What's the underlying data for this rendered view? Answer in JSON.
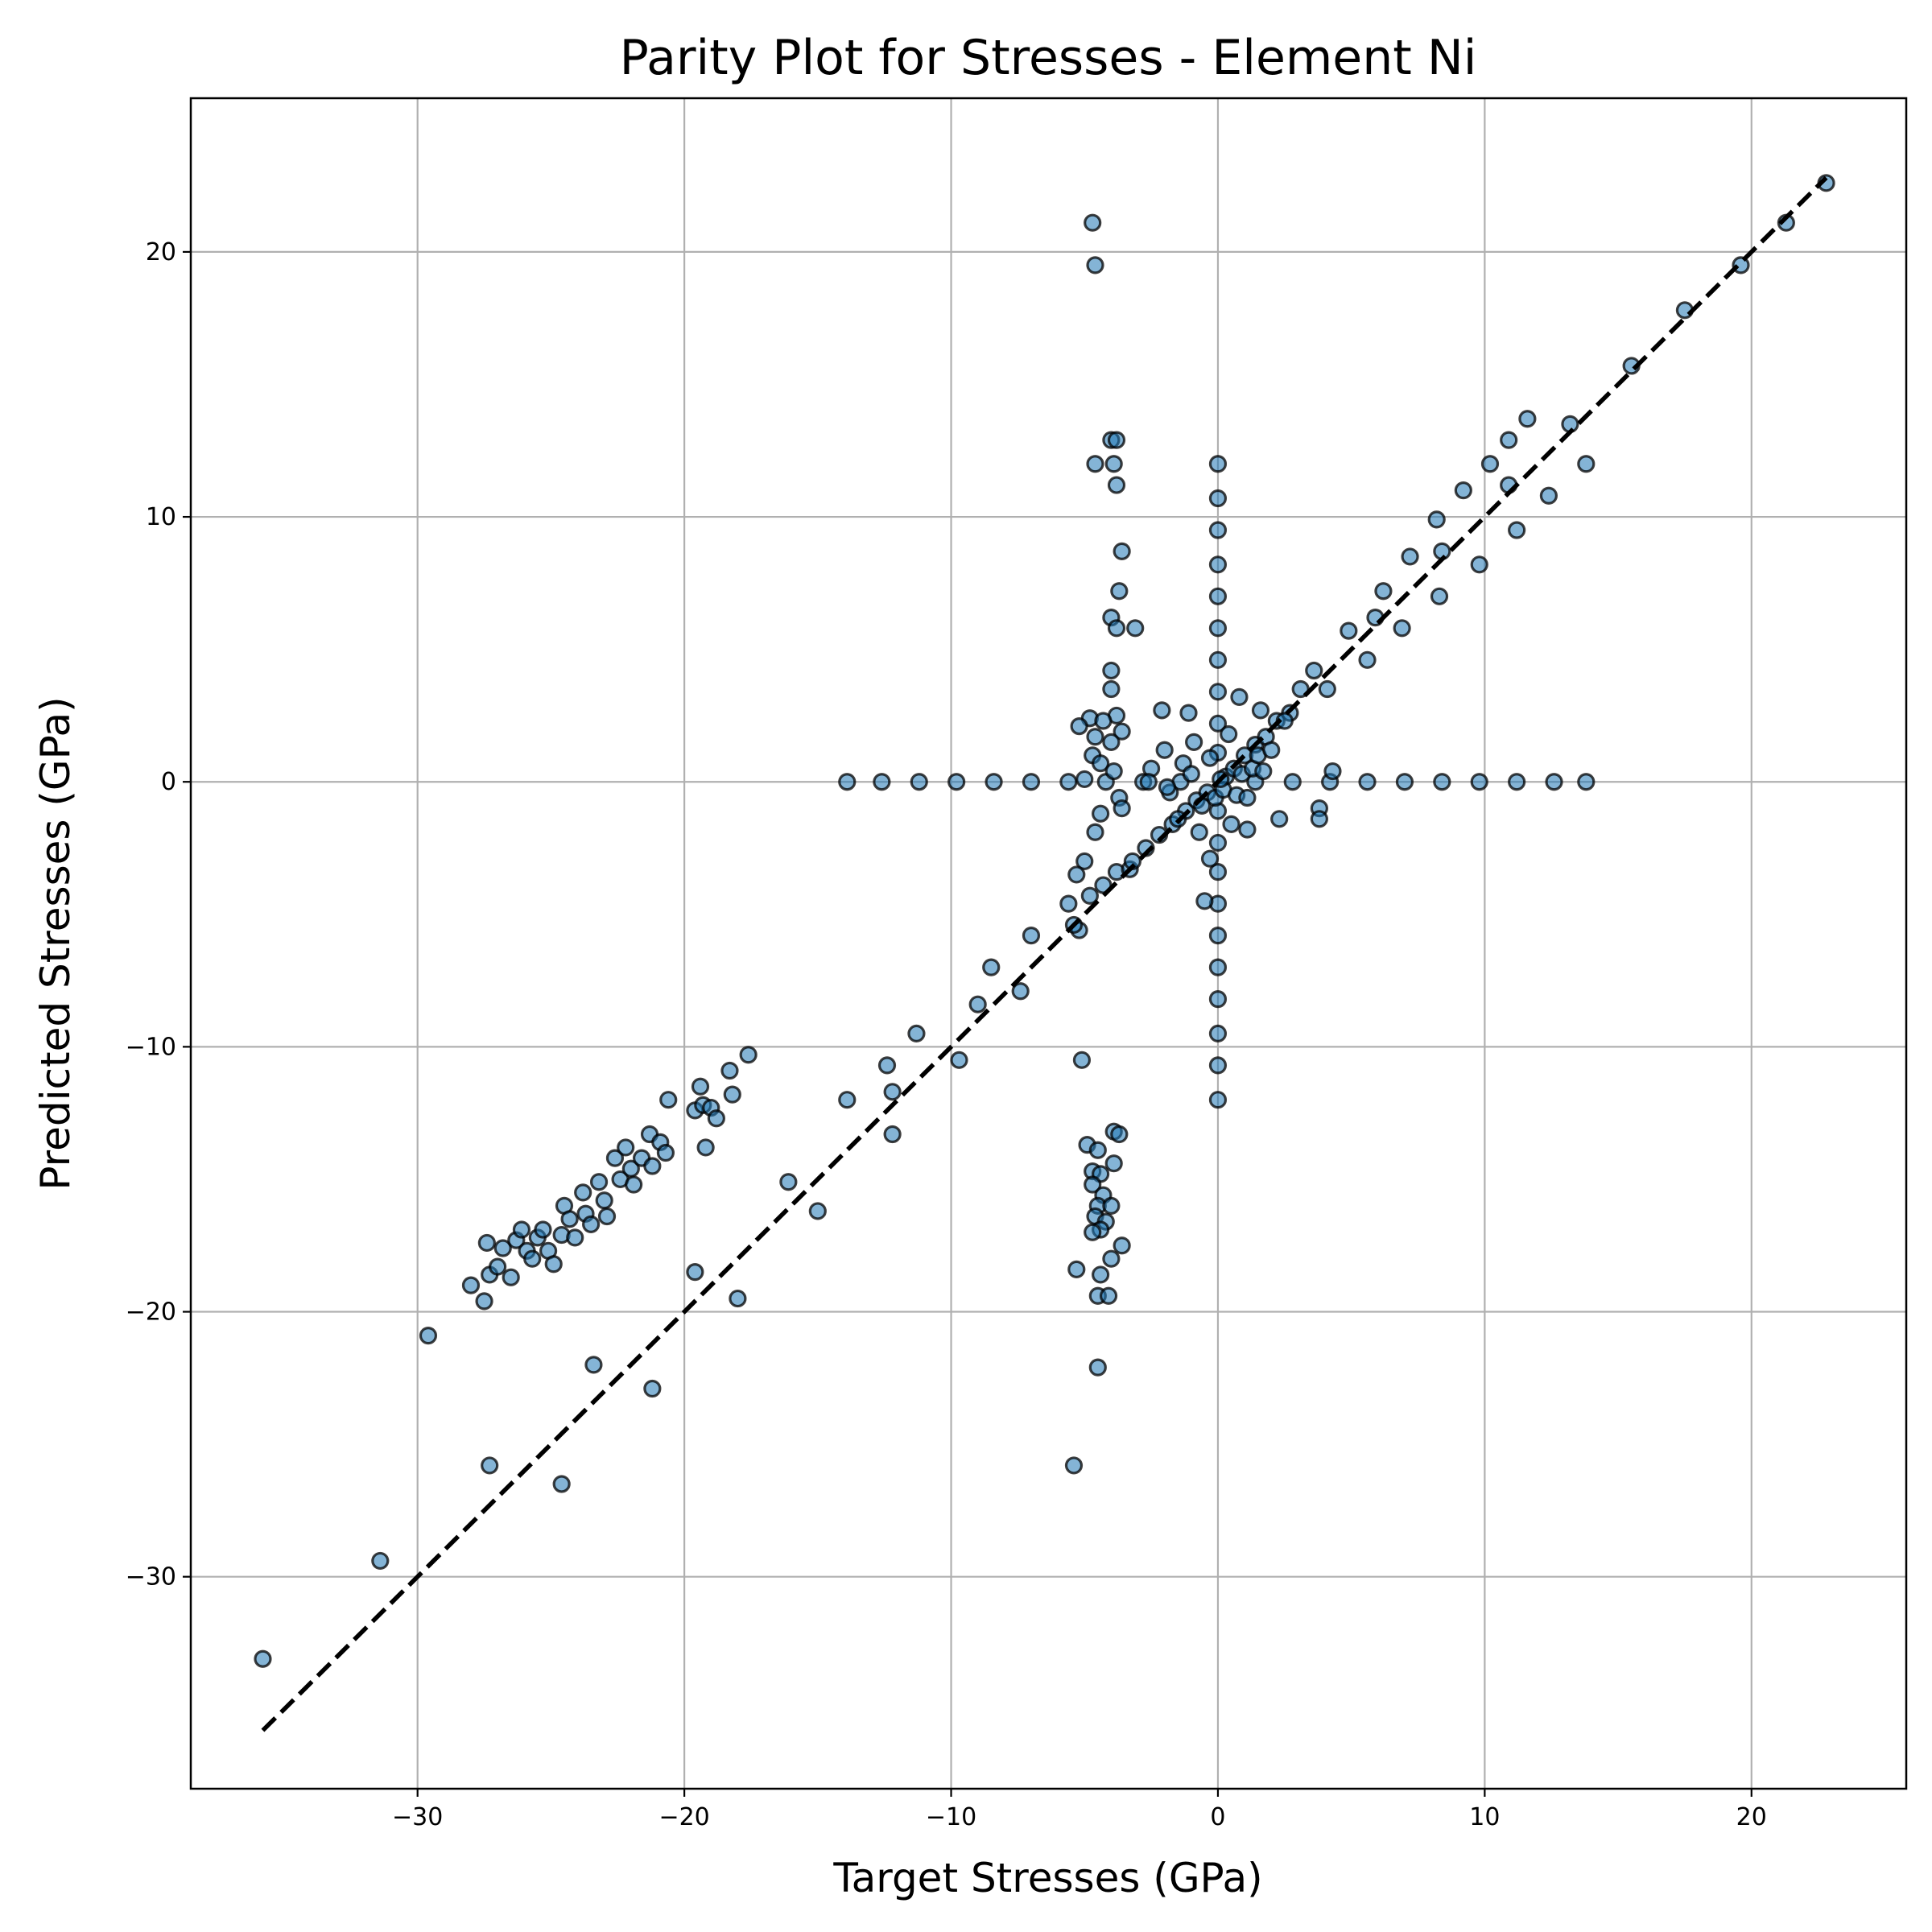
{
  "chart_data": {
    "type": "scatter",
    "title": "Parity Plot for Stresses - Element Ni",
    "xlabel": "Target Stresses (GPa)",
    "ylabel": "Predicted Stresses (GPa)",
    "xlim": [
      -38.5,
      25.8
    ],
    "ylim": [
      -38.0,
      25.8
    ],
    "xticks": [
      -30,
      -20,
      -10,
      0,
      10,
      20
    ],
    "yticks": [
      -30,
      -20,
      -10,
      0,
      10,
      20
    ],
    "xtick_labels": [
      "−30",
      "−20",
      "−10",
      "0",
      "10",
      "20"
    ],
    "ytick_labels": [
      "−30",
      "−20",
      "−10",
      "0",
      "10",
      "20"
    ],
    "grid": true,
    "marker_color": "#1f77b4",
    "parity_line": {
      "x": [
        -35.8,
        22.8
      ],
      "y": [
        -35.8,
        22.8
      ],
      "style": "dashed",
      "color": "#000000"
    },
    "series": [
      {
        "points": [
          [
            -35.8,
            -33.1
          ],
          [
            -31.4,
            -29.4
          ],
          [
            -27.3,
            -25.8
          ],
          [
            -24.6,
            -26.5
          ],
          [
            -23.4,
            -22.0
          ],
          [
            -21.2,
            -22.9
          ],
          [
            -19.6,
            -18.5
          ],
          [
            -18.0,
            -19.5
          ],
          [
            -16.1,
            -15.1
          ],
          [
            -15.0,
            -16.2
          ],
          [
            -13.9,
            -12.0
          ],
          [
            -12.4,
            -10.7
          ],
          [
            -12.2,
            -11.7
          ],
          [
            -12.2,
            -13.3
          ],
          [
            -11.3,
            -9.5
          ],
          [
            -9.7,
            -10.5
          ],
          [
            -9.0,
            -8.4
          ],
          [
            -8.5,
            -7.0
          ],
          [
            -7.4,
            -7.9
          ],
          [
            -7.0,
            -5.8
          ],
          [
            -5.6,
            -4.6
          ],
          [
            -5.2,
            -5.6
          ],
          [
            -4.8,
            -4.3
          ],
          [
            -4.3,
            -3.9
          ],
          [
            -3.8,
            -3.4
          ],
          [
            -3.3,
            -3.3
          ],
          [
            -2.7,
            -2.5
          ],
          [
            -2.2,
            -2.0
          ],
          [
            -1.7,
            -1.6
          ],
          [
            -1.2,
            -1.1
          ],
          [
            -0.8,
            -0.7
          ],
          [
            -0.4,
            -0.4
          ],
          [
            0.3,
            0.2
          ],
          [
            0.6,
            0.5
          ],
          [
            1.0,
            1.0
          ],
          [
            1.4,
            1.4
          ],
          [
            1.8,
            1.7
          ],
          [
            2.2,
            2.3
          ],
          [
            2.7,
            2.6
          ],
          [
            3.1,
            3.5
          ],
          [
            3.6,
            4.2
          ],
          [
            4.1,
            3.5
          ],
          [
            4.9,
            5.7
          ],
          [
            5.6,
            4.6
          ],
          [
            5.9,
            6.2
          ],
          [
            6.2,
            7.2
          ],
          [
            7.2,
            8.5
          ],
          [
            6.9,
            5.8
          ],
          [
            8.2,
            9.9
          ],
          [
            8.4,
            8.7
          ],
          [
            8.3,
            7.0
          ],
          [
            9.2,
            11.0
          ],
          [
            9.8,
            8.2
          ],
          [
            10.2,
            12.0
          ],
          [
            10.9,
            12.9
          ],
          [
            10.9,
            11.2
          ],
          [
            11.2,
            9.5
          ],
          [
            11.6,
            13.7
          ],
          [
            12.4,
            10.8
          ],
          [
            13.2,
            13.5
          ],
          [
            13.8,
            12.0
          ],
          [
            15.5,
            15.7
          ],
          [
            17.5,
            17.8
          ],
          [
            19.6,
            19.5
          ],
          [
            21.3,
            21.1
          ],
          [
            22.8,
            22.6
          ],
          [
            -13.9,
            0.0
          ],
          [
            -12.6,
            0.0
          ],
          [
            -11.2,
            0.0
          ],
          [
            -9.8,
            0.0
          ],
          [
            -8.4,
            0.0
          ],
          [
            -7.0,
            0.0
          ],
          [
            -5.6,
            0.0
          ],
          [
            -4.2,
            0.0
          ],
          [
            -2.8,
            0.0
          ],
          [
            -1.4,
            0.0
          ],
          [
            1.4,
            0.0
          ],
          [
            2.8,
            0.0
          ],
          [
            4.2,
            0.0
          ],
          [
            5.6,
            0.0
          ],
          [
            7.0,
            0.0
          ],
          [
            8.4,
            0.0
          ],
          [
            9.8,
            0.0
          ],
          [
            11.2,
            0.0
          ],
          [
            12.6,
            0.0
          ],
          [
            13.8,
            0.0
          ],
          [
            0,
            12.0
          ],
          [
            0,
            10.7
          ],
          [
            0,
            9.5
          ],
          [
            0,
            8.2
          ],
          [
            0,
            7.0
          ],
          [
            0,
            5.8
          ],
          [
            0,
            4.6
          ],
          [
            0,
            3.4
          ],
          [
            0,
            2.2
          ],
          [
            0,
            1.1
          ],
          [
            0,
            -1.1
          ],
          [
            0,
            -2.3
          ],
          [
            0,
            -3.4
          ],
          [
            0,
            -4.6
          ],
          [
            0,
            -5.8
          ],
          [
            0,
            -7.0
          ],
          [
            0,
            -8.2
          ],
          [
            0,
            -9.5
          ],
          [
            0,
            -10.7
          ],
          [
            0,
            -12.0
          ],
          [
            -4.7,
            21.1
          ],
          [
            -4.6,
            19.5
          ],
          [
            -4.0,
            12.9
          ],
          [
            -3.8,
            12.9
          ],
          [
            -4.6,
            12.0
          ],
          [
            -3.9,
            12.0
          ],
          [
            -3.8,
            11.2
          ],
          [
            -3.6,
            8.7
          ],
          [
            -3.7,
            7.2
          ],
          [
            -4.0,
            6.2
          ],
          [
            -3.8,
            5.8
          ],
          [
            -3.1,
            5.8
          ],
          [
            -4.0,
            4.2
          ],
          [
            -4.0,
            3.5
          ],
          [
            -3.8,
            2.5
          ],
          [
            -4.8,
            2.4
          ],
          [
            -4.3,
            2.3
          ],
          [
            -5.2,
            2.1
          ],
          [
            -3.6,
            1.9
          ],
          [
            -4.6,
            1.7
          ],
          [
            -4.0,
            1.5
          ],
          [
            -4.7,
            1.0
          ],
          [
            -4.4,
            0.7
          ],
          [
            -3.9,
            0.4
          ],
          [
            -5.0,
            0.1
          ],
          [
            -3.7,
            -0.6
          ],
          [
            -3.6,
            -1.0
          ],
          [
            -4.4,
            -1.2
          ],
          [
            -4.6,
            -1.9
          ],
          [
            -5.0,
            -3.0
          ],
          [
            -5.3,
            -3.5
          ],
          [
            -5.4,
            -5.4
          ],
          [
            -5.1,
            -10.5
          ],
          [
            -4.9,
            -13.7
          ],
          [
            -4.5,
            -13.9
          ],
          [
            -3.9,
            -13.2
          ],
          [
            -3.7,
            -13.3
          ],
          [
            -3.9,
            -14.4
          ],
          [
            -4.7,
            -14.7
          ],
          [
            -4.4,
            -14.8
          ],
          [
            -4.7,
            -15.2
          ],
          [
            -4.3,
            -15.6
          ],
          [
            -4.5,
            -16.0
          ],
          [
            -4.0,
            -16.0
          ],
          [
            -4.6,
            -16.4
          ],
          [
            -4.2,
            -16.6
          ],
          [
            -4.4,
            -16.9
          ],
          [
            -4.7,
            -17.0
          ],
          [
            -3.6,
            -17.5
          ],
          [
            -4.0,
            -18.0
          ],
          [
            -5.3,
            -18.4
          ],
          [
            -4.4,
            -18.6
          ],
          [
            -4.5,
            -19.4
          ],
          [
            -4.1,
            -19.4
          ],
          [
            -4.5,
            -22.1
          ],
          [
            -5.4,
            -25.8
          ],
          [
            -29.6,
            -20.9
          ],
          [
            -28.0,
            -19.0
          ],
          [
            -27.5,
            -19.6
          ],
          [
            -27.4,
            -17.4
          ],
          [
            -27.3,
            -18.6
          ],
          [
            -27.0,
            -18.3
          ],
          [
            -26.8,
            -17.6
          ],
          [
            -26.5,
            -18.7
          ],
          [
            -26.3,
            -17.3
          ],
          [
            -26.1,
            -16.9
          ],
          [
            -25.9,
            -17.7
          ],
          [
            -25.7,
            -18.0
          ],
          [
            -25.5,
            -17.2
          ],
          [
            -25.3,
            -16.9
          ],
          [
            -25.1,
            -17.7
          ],
          [
            -24.9,
            -18.2
          ],
          [
            -24.6,
            -17.1
          ],
          [
            -24.5,
            -16.0
          ],
          [
            -24.3,
            -16.5
          ],
          [
            -24.1,
            -17.2
          ],
          [
            -23.8,
            -15.5
          ],
          [
            -23.7,
            -16.3
          ],
          [
            -23.5,
            -16.7
          ],
          [
            -23.2,
            -15.1
          ],
          [
            -23.0,
            -15.8
          ],
          [
            -22.9,
            -16.4
          ],
          [
            -22.6,
            -14.2
          ],
          [
            -22.4,
            -15.0
          ],
          [
            -22.2,
            -13.8
          ],
          [
            -22.0,
            -14.6
          ],
          [
            -21.9,
            -15.2
          ],
          [
            -21.6,
            -14.2
          ],
          [
            -21.3,
            -13.3
          ],
          [
            -21.2,
            -14.5
          ],
          [
            -20.9,
            -13.6
          ],
          [
            -20.7,
            -14.0
          ],
          [
            -20.6,
            -12.0
          ],
          [
            -19.6,
            -12.4
          ],
          [
            -19.4,
            -11.5
          ],
          [
            -19.3,
            -12.2
          ],
          [
            -19.2,
            -13.8
          ],
          [
            -19.0,
            -12.3
          ],
          [
            -18.8,
            -12.7
          ],
          [
            -18.3,
            -10.9
          ],
          [
            -18.2,
            -11.8
          ],
          [
            -17.6,
            -10.3
          ],
          [
            -2.5,
            0.5
          ],
          [
            -2.0,
            1.2
          ],
          [
            -1.8,
            -0.4
          ],
          [
            -1.3,
            0.7
          ],
          [
            -0.9,
            1.5
          ],
          [
            -0.6,
            -0.9
          ],
          [
            -0.3,
            0.9
          ],
          [
            -0.1,
            -0.6
          ],
          [
            0.2,
            -0.3
          ],
          [
            0.4,
            1.8
          ],
          [
            0.7,
            -0.5
          ],
          [
            0.9,
            0.3
          ],
          [
            1.1,
            -0.6
          ],
          [
            1.3,
            0.5
          ],
          [
            1.5,
            1.0
          ],
          [
            1.7,
            0.4
          ],
          [
            2.0,
            1.2
          ],
          [
            2.3,
            -1.4
          ],
          [
            0.5,
            -1.6
          ],
          [
            -0.7,
            -1.9
          ],
          [
            -1.1,
            2.6
          ],
          [
            -2.1,
            2.7
          ],
          [
            0.8,
            3.2
          ],
          [
            1.6,
            2.7
          ],
          [
            -3.2,
            -3.0
          ],
          [
            -1.5,
            -1.4
          ],
          [
            0.1,
            0.1
          ],
          [
            2.5,
            2.3
          ],
          [
            -0.3,
            -2.9
          ],
          [
            -0.5,
            -4.5
          ],
          [
            3.8,
            -1.0
          ],
          [
            3.8,
            -1.4
          ],
          [
            4.3,
            0.4
          ],
          [
            1.1,
            -1.8
          ],
          [
            -2.6,
            0.0
          ],
          [
            -1.9,
            -0.2
          ],
          [
            -1.0,
            0.3
          ]
        ]
      }
    ]
  }
}
